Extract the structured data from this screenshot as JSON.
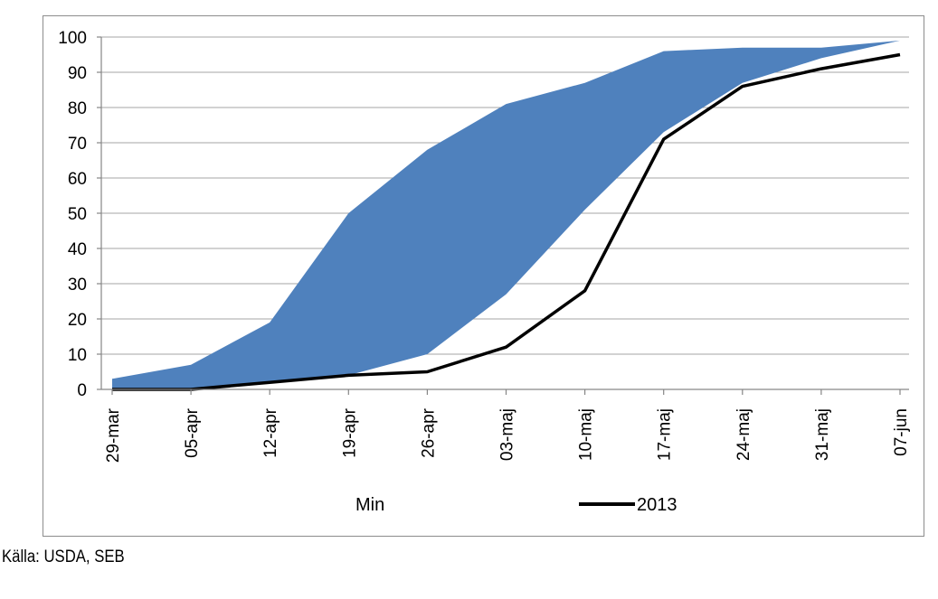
{
  "source_note": "Källa: USDA, SEB",
  "colors": {
    "band": "#4f81bd",
    "line": "#000000",
    "grid": "#a6a6a6",
    "frame": "#8c8c8c"
  },
  "chart_data": {
    "type": "area",
    "categories": [
      "29-mar",
      "05-apr",
      "12-apr",
      "19-apr",
      "26-apr",
      "03-maj",
      "10-maj",
      "17-maj",
      "24-maj",
      "31-maj",
      "07-jun"
    ],
    "ylim": [
      0,
      100
    ],
    "yticks": [
      0,
      10,
      20,
      30,
      40,
      50,
      60,
      70,
      80,
      90,
      100
    ],
    "grid": true,
    "legend_position": "bottom",
    "series": [
      {
        "name": "Min",
        "kind": "area-band-lower",
        "values": [
          0,
          0,
          2,
          4,
          10,
          27,
          51,
          73,
          87,
          94,
          99
        ]
      },
      {
        "kind": "area-band-upper",
        "values": [
          3,
          7,
          19,
          50,
          68,
          81,
          87,
          96,
          97,
          97,
          99
        ]
      },
      {
        "name": "2013",
        "kind": "line",
        "values": [
          0,
          0,
          2,
          4,
          5,
          12,
          28,
          71,
          86,
          91,
          95
        ]
      }
    ],
    "legend": [
      {
        "label": "Min",
        "marker": "none"
      },
      {
        "label": "2013",
        "marker": "line"
      }
    ]
  }
}
